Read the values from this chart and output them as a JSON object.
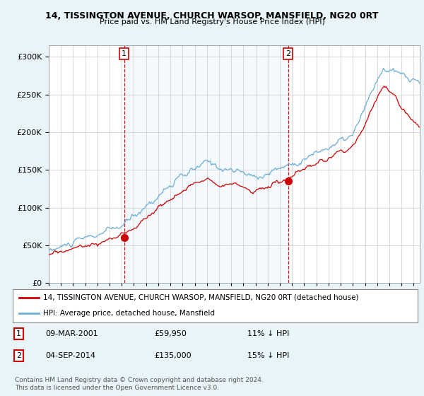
{
  "title1": "14, TISSINGTON AVENUE, CHURCH WARSOP, MANSFIELD, NG20 0RT",
  "title2": "Price paid vs. HM Land Registry's House Price Index (HPI)",
  "legend1": "14, TISSINGTON AVENUE, CHURCH WARSOP, MANSFIELD, NG20 0RT (detached house)",
  "legend2": "HPI: Average price, detached house, Mansfield",
  "transaction1_date": "09-MAR-2001",
  "transaction1_price": 59950,
  "transaction1_hpi": "11% ↓ HPI",
  "transaction2_date": "04-SEP-2014",
  "transaction2_price": 135000,
  "transaction2_hpi": "15% ↓ HPI",
  "transaction1_x": 2001.19,
  "transaction2_x": 2014.67,
  "footnote": "Contains HM Land Registry data © Crown copyright and database right 2024.\nThis data is licensed under the Open Government Licence v3.0.",
  "hpi_color": "#6baed6",
  "price_color": "#cc0000",
  "vline_color": "#cc0000",
  "shade_color": "#d0e8f5",
  "background_color": "#e8f4f8",
  "plot_bg_color": "#ffffff",
  "ylim": [
    0,
    310000
  ],
  "yticks": [
    0,
    50000,
    100000,
    150000,
    200000,
    250000,
    300000
  ]
}
